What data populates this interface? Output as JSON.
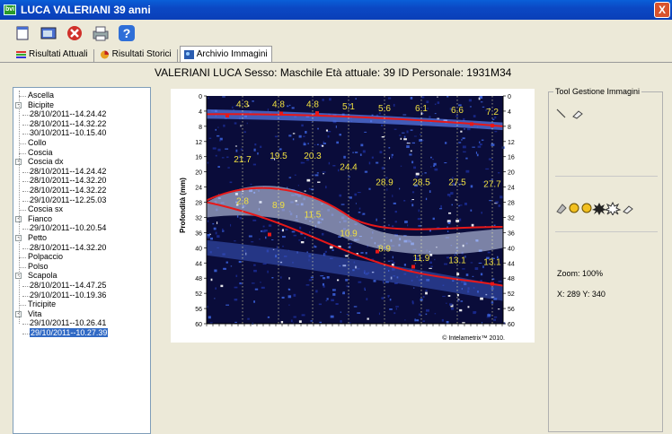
{
  "window": {
    "title": "LUCA VALERIANI 39 anni",
    "close_glyph": "X"
  },
  "toolbar": {
    "buttons": [
      "new-icon",
      "folder-icon",
      "close-icon",
      "print-icon",
      "help-icon"
    ]
  },
  "tabs": [
    {
      "label": "Risultati Attuali",
      "icon": "bars-icon",
      "active": false
    },
    {
      "label": "Risultati Storici",
      "icon": "pie-icon",
      "active": false
    },
    {
      "label": "Archivio Immagini",
      "icon": "image-icon",
      "active": true
    }
  ],
  "header": {
    "text": "VALERIANI LUCA  Sesso: Maschile  Età attuale: 39  ID Personale: 1931M34"
  },
  "tree": {
    "items": [
      {
        "label": "Ascella",
        "level": 0,
        "expander": ""
      },
      {
        "label": "Bicipite",
        "level": 0,
        "expander": "-"
      },
      {
        "label": "28/10/2011--14.24.42",
        "level": 1
      },
      {
        "label": "28/10/2011--14.32.22",
        "level": 1
      },
      {
        "label": "30/10/2011--10.15.40",
        "level": 1
      },
      {
        "label": "Collo",
        "level": 0,
        "expander": ""
      },
      {
        "label": "Coscia",
        "level": 0,
        "expander": ""
      },
      {
        "label": "Coscia dx",
        "level": 0,
        "expander": "-"
      },
      {
        "label": "28/10/2011--14.24.42",
        "level": 1
      },
      {
        "label": "28/10/2011--14.32.20",
        "level": 1
      },
      {
        "label": "28/10/2011--14.32.22",
        "level": 1
      },
      {
        "label": "29/10/2011--12.25.03",
        "level": 1
      },
      {
        "label": "Coscia sx",
        "level": 0,
        "expander": ""
      },
      {
        "label": "Fianco",
        "level": 0,
        "expander": "-"
      },
      {
        "label": "29/10/2011--10.20.54",
        "level": 1
      },
      {
        "label": "Petto",
        "level": 0,
        "expander": "-"
      },
      {
        "label": "28/10/2011--14.32.20",
        "level": 1
      },
      {
        "label": "Polpaccio",
        "level": 0,
        "expander": ""
      },
      {
        "label": "Polso",
        "level": 0,
        "expander": ""
      },
      {
        "label": "Scapola",
        "level": 0,
        "expander": "-"
      },
      {
        "label": "28/10/2011--14.47.25",
        "level": 1
      },
      {
        "label": "29/10/2011--10.19.36",
        "level": 1
      },
      {
        "label": "Tricipite",
        "level": 0,
        "expander": ""
      },
      {
        "label": "Vita",
        "level": 0,
        "expander": "-"
      },
      {
        "label": "29/10/2011--10.26.41",
        "level": 1
      },
      {
        "label": "29/10/2011--10.27.39",
        "level": 1,
        "selected": true
      }
    ]
  },
  "scan": {
    "ylabel": "Profondità (mm)",
    "ticks": [
      "0",
      "4",
      "8",
      "12",
      "16",
      "20",
      "24",
      "28",
      "32",
      "36",
      "40",
      "44",
      "48",
      "52",
      "56",
      "60"
    ],
    "top_values": [
      "4.3",
      "4.8",
      "4.8",
      "5.1",
      "5.6",
      "6.1",
      "6.6",
      "7.2"
    ],
    "mid_values": [
      "21.7",
      "19.5",
      "20.3",
      "24.4",
      "28.9",
      "28.5",
      "27.5",
      "27.7"
    ],
    "bottom_values": [
      "2.8",
      "8.9",
      "11.5",
      "10.9",
      "8.9",
      "11.9",
      "13.1",
      "13.1"
    ],
    "copyright": "© Intelametrix™ 2010."
  },
  "tools": {
    "title": "Tool Gestione Immagini",
    "zoom_label": "Zoom:  100%",
    "coords_label": "X: 289    Y: 340"
  },
  "colors": {
    "titlebar": "#0a4fd0",
    "selection": "#316ac5",
    "trace": "#e81818",
    "label": "#f0e040",
    "background": "#ece9d8"
  }
}
